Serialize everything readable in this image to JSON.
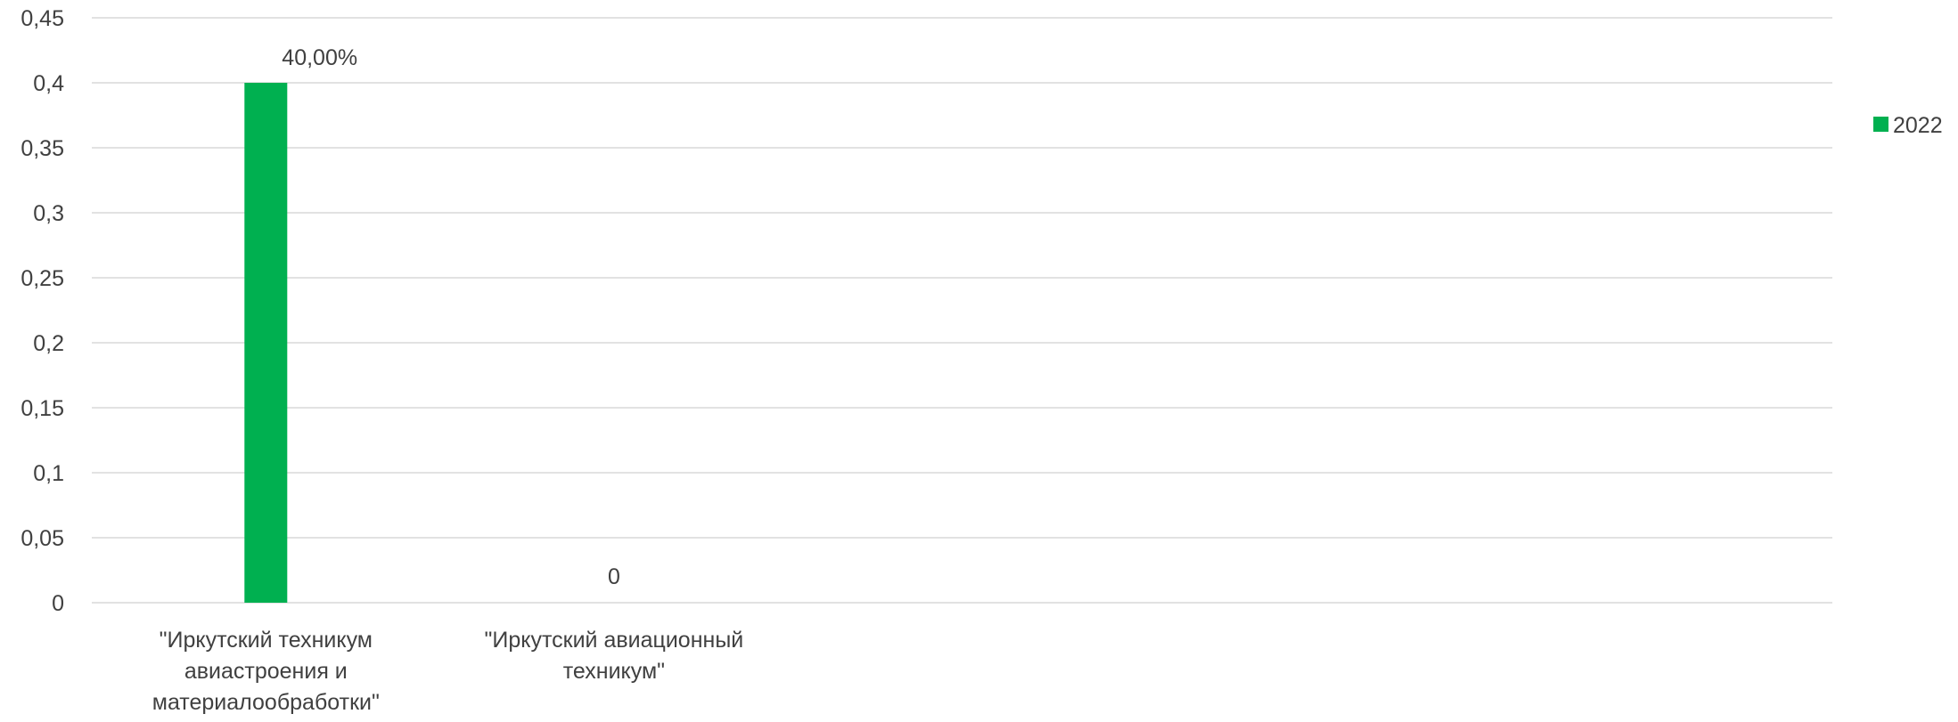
{
  "chart_data": {
    "type": "bar",
    "categories": [
      "\"Иркутский техникум авиастроения и материалообработки\"",
      "\"Иркутский авиационный техникум\""
    ],
    "category_label_lines": [
      [
        "\"Иркутский техникум",
        "авиастроения и",
        "материалообработки\""
      ],
      [
        "\"Иркутский авиационный",
        "техникум\""
      ]
    ],
    "slot_count": 5,
    "series": [
      {
        "name": "2022",
        "color": "#00b050",
        "values": [
          0.4,
          0
        ],
        "data_labels": [
          "40,00%",
          "0"
        ]
      }
    ],
    "y_ticks": [
      0,
      0.05,
      0.1,
      0.15,
      0.2,
      0.25,
      0.3,
      0.35,
      0.4,
      0.45
    ],
    "y_tick_labels": [
      "0",
      "0,05",
      "0,1",
      "0,15",
      "0,2",
      "0,25",
      "0,3",
      "0,35",
      "0,4",
      "0,45"
    ],
    "ylim": [
      0,
      0.45
    ],
    "title": "",
    "xlabel": "",
    "ylabel": "",
    "grid": true,
    "legend_position": "right"
  }
}
